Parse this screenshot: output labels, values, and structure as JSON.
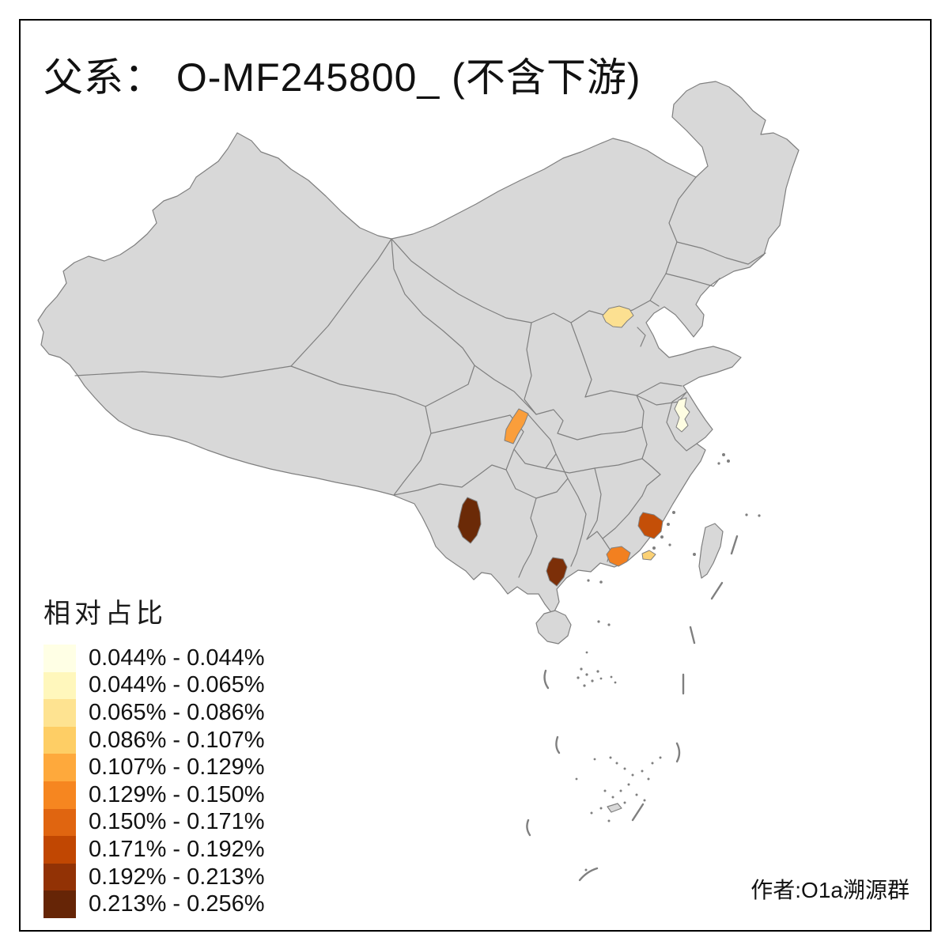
{
  "title": "父系： O-MF245800_ (不含下游)",
  "author": "作者:O1a溯源群",
  "legend": {
    "title": "相对占比",
    "entries": [
      {
        "label": "0.044% - 0.044%",
        "color": "#FFFFE5"
      },
      {
        "label": "0.044% - 0.065%",
        "color": "#FFF7BC"
      },
      {
        "label": "0.065% - 0.086%",
        "color": "#FEE391"
      },
      {
        "label": "0.086% - 0.107%",
        "color": "#FECE65"
      },
      {
        "label": "0.107% - 0.129%",
        "color": "#FEA93C"
      },
      {
        "label": "0.129% - 0.150%",
        "color": "#F68620"
      },
      {
        "label": "0.150% - 0.171%",
        "color": "#E06510"
      },
      {
        "label": "0.171% - 0.192%",
        "color": "#C14702"
      },
      {
        "label": "0.192% - 0.213%",
        "color": "#923205"
      },
      {
        "label": "0.213% - 0.256%",
        "color": "#662506"
      }
    ]
  },
  "map": {
    "land_fill": "#D8D8D8",
    "border_color": "#7F7F7F",
    "sea_background": "#FFFFFF",
    "regions": [
      {
        "id": "region-east-jiangsu",
        "color": "#FEFDE2",
        "legend_label": "0.044% - 0.044%"
      },
      {
        "id": "region-beijing-area",
        "color": "#FCE091",
        "legend_label": "0.065% - 0.086%"
      },
      {
        "id": "region-chaoshan-coast",
        "color": "#FBD175",
        "legend_label": "0.086% - 0.107%"
      },
      {
        "id": "region-chongqing-area",
        "color": "#FA9E3B",
        "legend_label": "0.107% - 0.129%"
      },
      {
        "id": "region-central-guangdong",
        "color": "#F28020",
        "legend_label": "0.129% - 0.150%"
      },
      {
        "id": "region-central-fujian",
        "color": "#C44F08",
        "legend_label": "0.171% - 0.192%"
      },
      {
        "id": "region-south-guangxi",
        "color": "#7C2F08",
        "legend_label": "0.192% - 0.213%"
      },
      {
        "id": "region-west-yunnan",
        "color": "#6B2A07",
        "legend_label": "0.213% - 0.256%"
      }
    ]
  }
}
